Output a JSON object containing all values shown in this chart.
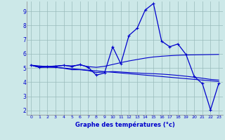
{
  "xlabel": "Graphe des températures (°c)",
  "background_color": "#cce8e8",
  "line_color": "#0000cc",
  "grid_color": "#99bbbb",
  "axis_color": "#0000cc",
  "xlim": [
    -0.5,
    23.5
  ],
  "ylim": [
    1.7,
    9.7
  ],
  "xticks": [
    0,
    1,
    2,
    3,
    4,
    5,
    6,
    7,
    8,
    9,
    10,
    11,
    12,
    13,
    14,
    15,
    16,
    17,
    18,
    19,
    20,
    21,
    22,
    23
  ],
  "yticks": [
    2,
    3,
    4,
    5,
    6,
    7,
    8,
    9
  ],
  "series": {
    "main": {
      "x": [
        0,
        1,
        2,
        3,
        4,
        5,
        6,
        7,
        8,
        9,
        10,
        11,
        12,
        13,
        14,
        15,
        16,
        17,
        18,
        19,
        20,
        21,
        22,
        23
      ],
      "y": [
        5.2,
        5.05,
        5.1,
        5.1,
        5.2,
        5.1,
        5.25,
        5.05,
        4.5,
        4.65,
        6.5,
        5.3,
        7.3,
        7.8,
        9.1,
        9.55,
        6.9,
        6.5,
        6.7,
        5.95,
        4.4,
        3.9,
        2.05,
        3.9
      ]
    },
    "smooth_upper": {
      "x": [
        0,
        1,
        2,
        3,
        4,
        5,
        6,
        7,
        8,
        9,
        10,
        11,
        12,
        13,
        14,
        15,
        16,
        17,
        18,
        19,
        20,
        21,
        22,
        23
      ],
      "y": [
        5.2,
        5.1,
        5.1,
        5.15,
        5.18,
        5.15,
        5.22,
        5.1,
        5.05,
        5.12,
        5.25,
        5.38,
        5.5,
        5.6,
        5.7,
        5.78,
        5.83,
        5.87,
        5.9,
        5.92,
        5.93,
        5.94,
        5.95,
        5.96
      ]
    },
    "smooth_lower": {
      "x": [
        0,
        1,
        2,
        3,
        4,
        5,
        6,
        7,
        8,
        9,
        10,
        11,
        12,
        13,
        14,
        15,
        16,
        17,
        18,
        19,
        20,
        21,
        22,
        23
      ],
      "y": [
        5.2,
        5.05,
        5.05,
        5.05,
        4.98,
        4.88,
        4.88,
        4.82,
        4.68,
        4.72,
        4.75,
        4.72,
        4.68,
        4.65,
        4.62,
        4.6,
        4.57,
        4.53,
        4.48,
        4.42,
        4.35,
        4.28,
        4.2,
        4.15
      ]
    },
    "trend": {
      "x": [
        0,
        23
      ],
      "y": [
        5.2,
        4.05
      ]
    }
  }
}
